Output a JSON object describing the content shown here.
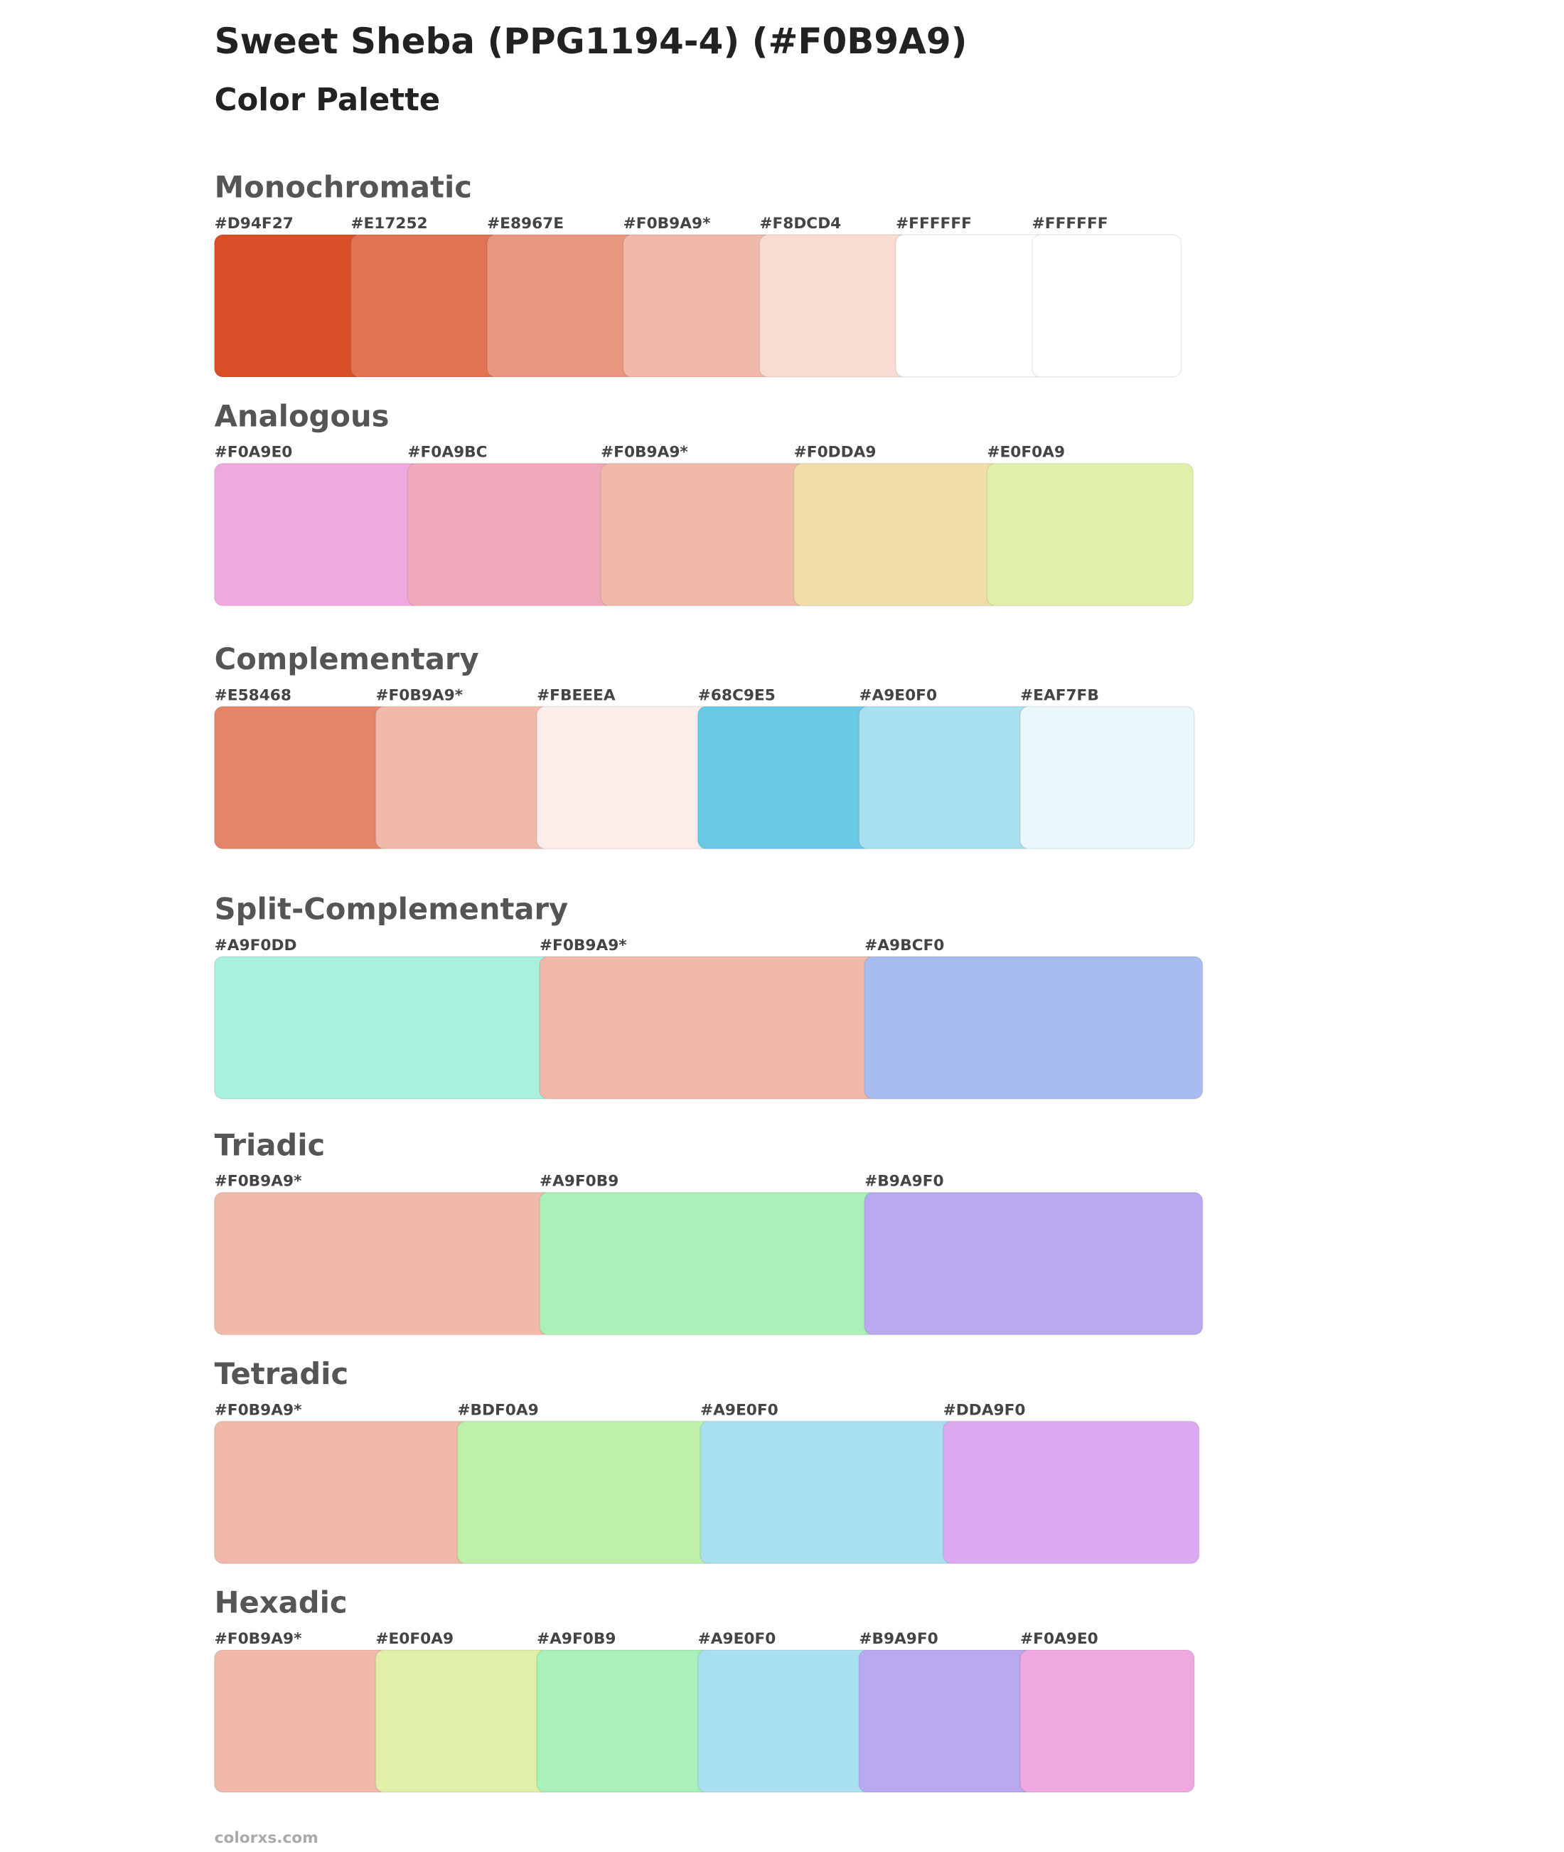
{
  "header": {
    "title": "Sweet Sheba (PPG1194-4) (#F0B9A9)",
    "subtitle": "Color Palette"
  },
  "sections": [
    {
      "name": "Monochromatic",
      "swatches": [
        "#D94F27",
        "#E17252",
        "#E8967E",
        "#F0B9A9*",
        "#F8DCD4",
        "#FFFFFF",
        "#FFFFFF"
      ]
    },
    {
      "name": "Analogous",
      "swatches": [
        "#F0A9E0",
        "#F0A9BC",
        "#F0B9A9*",
        "#F0DDA9",
        "#E0F0A9"
      ]
    },
    {
      "name": "Complementary",
      "swatches": [
        "#E58468",
        "#F0B9A9*",
        "#FBEEEA",
        "#68C9E5",
        "#A9E0F0",
        "#EAF7FB"
      ]
    },
    {
      "name": "Split-Complementary",
      "swatches": [
        "#A9F0DD",
        "#F0B9A9*",
        "#A9BCF0"
      ]
    },
    {
      "name": "Triadic",
      "swatches": [
        "#F0B9A9*",
        "#A9F0B9",
        "#B9A9F0"
      ]
    },
    {
      "name": "Tetradic",
      "swatches": [
        "#F0B9A9*",
        "#BDF0A9",
        "#A9E0F0",
        "#DDA9F0"
      ]
    },
    {
      "name": "Hexadic",
      "swatches": [
        "#F0B9A9*",
        "#E0F0A9",
        "#A9F0B9",
        "#A9E0F0",
        "#B9A9F0",
        "#F0A9E0"
      ]
    }
  ],
  "footer": "colorxs.com"
}
